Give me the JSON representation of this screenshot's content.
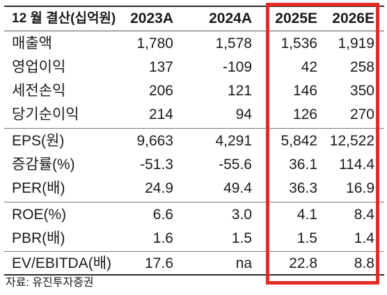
{
  "table": {
    "header": {
      "label": "12 월 결산(십억원)",
      "years": [
        "2023A",
        "2024A",
        "2025E",
        "2026E"
      ]
    },
    "rows": [
      {
        "label": "매출액",
        "values": [
          "1,780",
          "1,578",
          "1,536",
          "1,919"
        ]
      },
      {
        "label": "영업이익",
        "values": [
          "137",
          "-109",
          "42",
          "258"
        ]
      },
      {
        "label": "세전손익",
        "values": [
          "206",
          "121",
          "146",
          "350"
        ]
      },
      {
        "label": "당기순이익",
        "values": [
          "214",
          "94",
          "126",
          "270"
        ]
      },
      {
        "label": "EPS(원)",
        "values": [
          "9,663",
          "4,291",
          "5,842",
          "12,522"
        ]
      },
      {
        "label": "증감률(%)",
        "values": [
          "-51.3",
          "-55.6",
          "36.1",
          "114.4"
        ]
      },
      {
        "label": "PER(배)",
        "values": [
          "24.9",
          "49.4",
          "36.3",
          "16.9"
        ]
      },
      {
        "label": "ROE(%)",
        "values": [
          "6.6",
          "3.0",
          "4.1",
          "8.4"
        ]
      },
      {
        "label": "PBR(배)",
        "values": [
          "1.6",
          "1.5",
          "1.5",
          "1.4"
        ]
      },
      {
        "label": "EV/EBITDA(배)",
        "values": [
          "17.6",
          "na",
          "22.8",
          "8.8"
        ]
      }
    ]
  },
  "source": "자료: 유진투자증권",
  "highlight_color": "#e82a24"
}
